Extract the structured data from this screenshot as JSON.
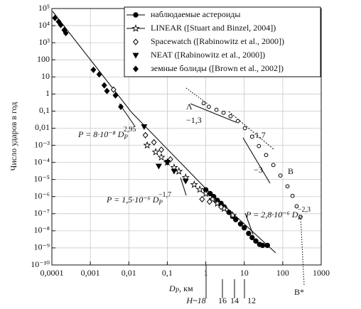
{
  "chart_data": {
    "type": "scatter",
    "y_label": "Число ударов в год",
    "x_label": "D",
    "x_label_sub": "P",
    "x_label_unit": ", км",
    "log_x": true,
    "log_y": true,
    "grid": true,
    "xlim": [
      0.0001,
      1000
    ],
    "ylim": [
      1e-10,
      100000
    ],
    "xticks": [
      {
        "value": 0.0001,
        "label": "0,0001"
      },
      {
        "value": 0.001,
        "label": "0,001"
      },
      {
        "value": 0.01,
        "label": "0,01"
      },
      {
        "value": 0.1,
        "label": "0,1"
      },
      1,
      10,
      100,
      1000
    ],
    "yticks": [
      {
        "value": 1e-10,
        "label": "10⁻¹⁰"
      },
      {
        "value": 1e-09,
        "label": "10⁻⁹"
      },
      {
        "value": 1e-08,
        "label": "10⁻⁸"
      },
      {
        "value": 1e-07,
        "label": "10⁻⁷"
      },
      {
        "value": 1e-06,
        "label": "10⁻⁶"
      },
      {
        "value": 1e-05,
        "label": "10⁻⁵"
      },
      {
        "value": 0.0001,
        "label": "10⁻⁴"
      },
      {
        "value": 0.001,
        "label": "10⁻³"
      },
      {
        "value": 0.01,
        "label": "0,01"
      },
      {
        "value": 0.1,
        "label": "0,1"
      },
      1,
      10,
      100,
      {
        "value": 1000,
        "label": "10³"
      },
      {
        "value": 10000,
        "label": "10⁴"
      },
      {
        "value": 100000,
        "label": "10⁵"
      }
    ],
    "h_labels": [
      "H~18",
      "16",
      "14",
      "12"
    ],
    "legend": "upper right",
    "series": [
      {
        "name": "наблюдаемые астероиды",
        "marker": "circle",
        "legend_line": true,
        "color": "#000000",
        "x": [
          1,
          1.3,
          1.6,
          2,
          2.5,
          3,
          4,
          5,
          6,
          8,
          10,
          13,
          16,
          20,
          25,
          30,
          40
        ],
        "values": [
          2.5e-06,
          1.5e-06,
          1e-06,
          6e-07,
          4e-07,
          2.5e-07,
          1.2e-07,
          7e-08,
          4.5e-08,
          2.5e-08,
          1.5e-08,
          7e-09,
          4e-09,
          2.5e-09,
          1.6e-09,
          1.4e-09,
          1.4e-09
        ]
      },
      {
        "name": "LINEAR ([Stuart and Binzel, 2004])",
        "marker": "star",
        "legend_line": true,
        "color": "#000000",
        "x": [
          0.03,
          0.05,
          0.07,
          0.1,
          0.15,
          0.2,
          0.3,
          0.5,
          0.7,
          1,
          1.5,
          2,
          3,
          5
        ],
        "values": [
          0.001,
          0.0004,
          0.0002,
          0.0001,
          5e-05,
          3e-05,
          1.3e-05,
          5e-06,
          2.6e-06,
          1.5e-06,
          7e-07,
          4e-07,
          2e-07,
          8e-08
        ]
      },
      {
        "name": "Spacewatch ([Rabinowitz et al., 2000])",
        "marker": "diamond-open",
        "legend_line": false,
        "color": "#000000",
        "x": [
          0.004,
          0.027,
          0.045,
          0.07,
          0.12,
          0.8,
          1.25,
          2.5
        ],
        "values": [
          1.8,
          0.0039,
          0.0015,
          0.00055,
          0.00015,
          7e-07,
          5e-07,
          2.5e-07
        ]
      },
      {
        "name": "NEAT ([Rabinowitz et al., 2000])",
        "marker": "triangle-down",
        "legend_line": false,
        "color": "#000000",
        "x": [
          0.025,
          0.06,
          0.1,
          0.15,
          0.3
        ],
        "values": [
          0.012,
          6e-05,
          0.0001,
          3e-05,
          8e-06
        ]
      },
      {
        "name": "земные болиды ([Brown et al., 2002])",
        "marker": "diamond",
        "legend_line": false,
        "color": "#000000",
        "x": [
          0.00012,
          0.00015,
          0.00017,
          0.00021,
          0.00023,
          0.0012,
          0.0017,
          0.0023,
          0.0027,
          0.0045,
          0.0062
        ],
        "values": [
          28000,
          17000,
          11000,
          5500,
          3700,
          26,
          14,
          3.2,
          1.5,
          0.83,
          0.18
        ]
      },
      {
        "marker": "circle-open",
        "legend_line": false,
        "color": "#000000",
        "x": [
          0.88,
          1.2,
          1.9,
          2.9,
          4.4,
          6.8,
          10.4,
          16,
          24,
          37,
          57,
          87,
          133,
          180,
          230,
          290
        ],
        "values": [
          0.29,
          0.18,
          0.12,
          0.08,
          0.05,
          0.026,
          0.01,
          0.0032,
          0.0009,
          0.00027,
          7e-05,
          1.7e-05,
          4e-06,
          1.1e-06,
          2.7e-07,
          6.5e-08
        ]
      }
    ],
    "annotations": [
      {
        "text": "P = 8·10⁻⁸ D",
        "sub": "P",
        "sup": "2,95"
      },
      {
        "text": "P = 1,5·10⁻⁶ D",
        "sub": "P",
        "sup": "−1,7"
      },
      {
        "text": "P = 2,8·10⁻⁶ D",
        "sub": "P",
        "sup": "−2,3"
      },
      {
        "text": "Λ"
      },
      {
        "text": "−1,3"
      },
      {
        "text": "−1,7"
      },
      {
        "text": "−3"
      },
      {
        "text": "B"
      },
      {
        "text": "B*"
      }
    ]
  }
}
